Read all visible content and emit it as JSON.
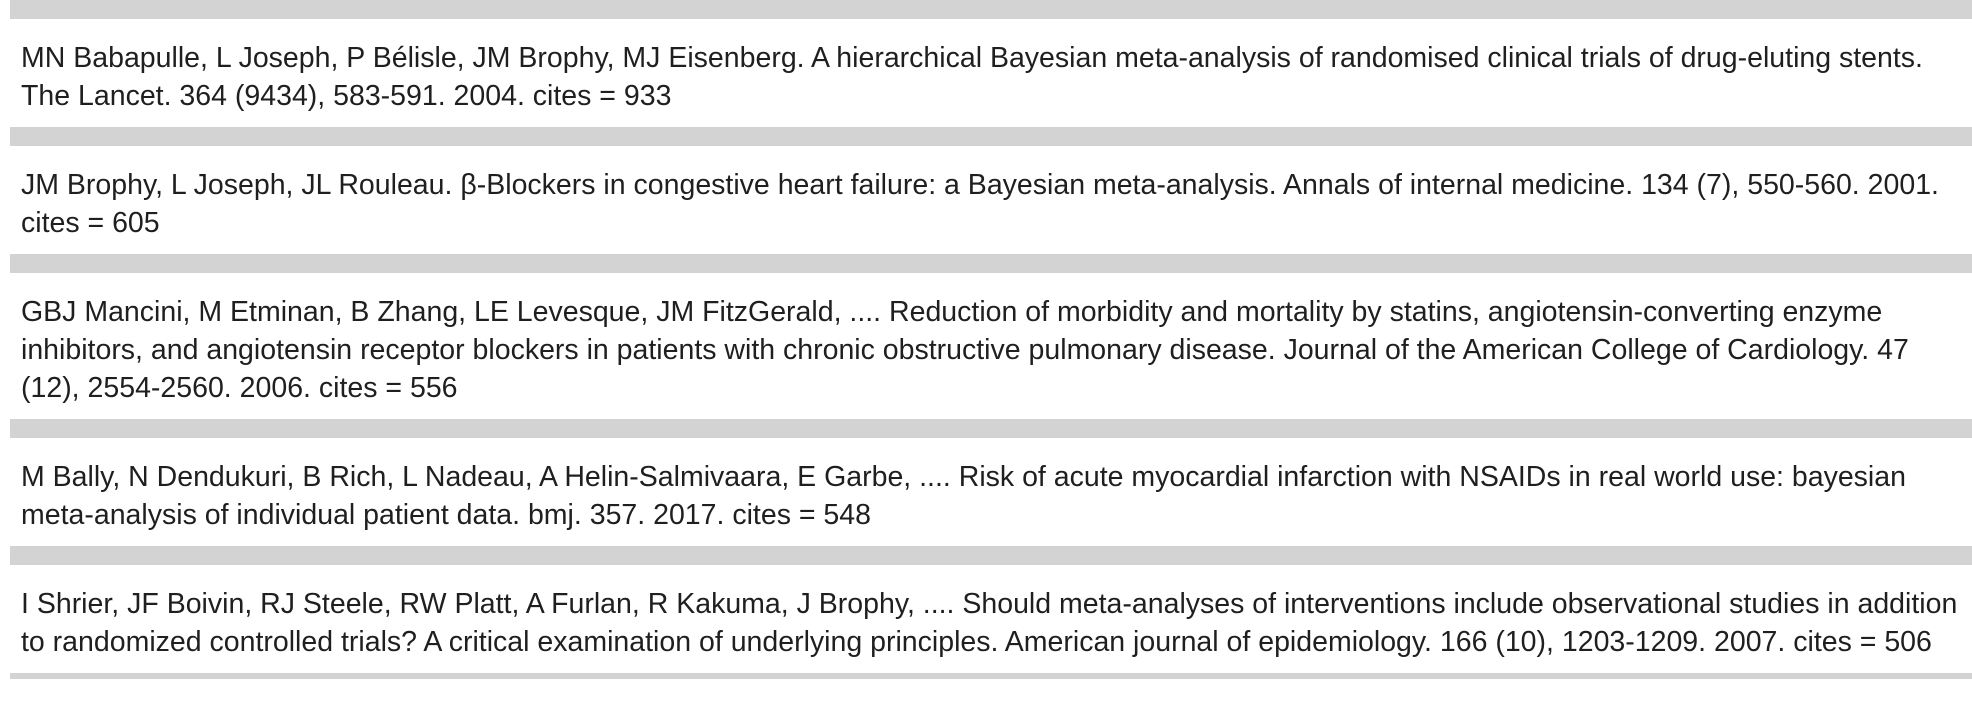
{
  "references": [
    {
      "text": "MN Babapulle, L Joseph, P Bélisle, JM Brophy, MJ Eisenberg. A hierarchical Bayesian meta-analysis of randomised clinical trials of drug-eluting stents. The Lancet. 364 (9434), 583-591. 2004. cites = 933"
    },
    {
      "text": "JM Brophy, L Joseph, JL Rouleau. β-Blockers in congestive heart failure: a Bayesian meta-analysis. Annals of internal medicine. 134 (7), 550-560. 2001. cites = 605"
    },
    {
      "text": "GBJ Mancini, M Etminan, B Zhang, LE Levesque, JM FitzGerald, .... Reduction of morbidity and mortality by statins, angiotensin-converting enzyme inhibitors, and angiotensin receptor blockers in patients with chronic obstructive pulmonary disease. Journal of the American College of Cardiology. 47 (12), 2554-2560. 2006. cites = 556"
    },
    {
      "text": "M Bally, N Dendukuri, B Rich, L Nadeau, A Helin-Salmivaara, E Garbe, .... Risk of acute myocardial infarction with NSAIDs in real world use: bayesian meta-analysis of individual patient data. bmj. 357. 2017. cites = 548"
    },
    {
      "text": "I Shrier, JF Boivin, RJ Steele, RW Platt, A Furlan, R Kakuma, J Brophy, .... Should meta-analyses of interventions include observational studies in addition to randomized controlled trials? A critical examination of underlying principles. American journal of epidemiology. 166 (10), 1203-1209. 2007. cites = 506"
    }
  ]
}
